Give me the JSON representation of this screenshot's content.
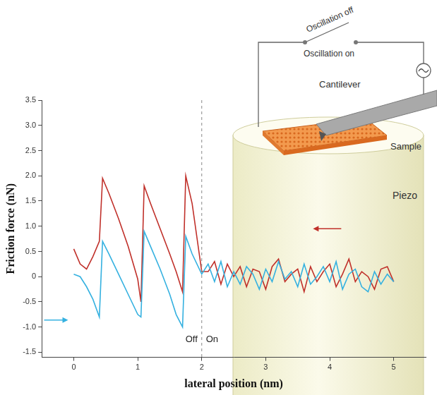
{
  "chart_data": {
    "type": "line",
    "x_label": "lateral position (nm)",
    "y_label": "Friction force (nN)",
    "x": [
      0,
      0.1,
      0.2,
      0.3,
      0.4,
      0.45,
      0.55,
      0.7,
      0.85,
      1.0,
      1.05,
      1.1,
      1.2,
      1.35,
      1.5,
      1.6,
      1.7,
      1.75,
      1.85,
      2.0,
      2.1,
      2.2,
      2.3,
      2.4,
      2.5,
      2.6,
      2.7,
      2.8,
      2.9,
      3.0,
      3.1,
      3.2,
      3.3,
      3.4,
      3.5,
      3.6,
      3.7,
      3.8,
      3.9,
      4.0,
      4.1,
      4.2,
      4.3,
      4.4,
      4.5,
      4.6,
      4.7,
      4.8,
      4.9,
      5.0
    ],
    "series": [
      {
        "color": "#35b1e0",
        "values": [
          0.05,
          0,
          -0.2,
          -0.45,
          -0.8,
          0.7,
          0.45,
          0.05,
          -0.35,
          -0.75,
          -0.8,
          0.9,
          0.6,
          0.15,
          -0.35,
          -0.75,
          -1.0,
          0.8,
          0.45,
          0.05,
          0.25,
          -0.1,
          0.3,
          -0.2,
          0.1,
          -0.15,
          0.2,
          0.05,
          -0.25,
          0.15,
          -0.1,
          0.3,
          -0.05,
          0.1,
          -0.2,
          0.25,
          -0.15,
          0.0,
          0.2,
          -0.1,
          0.3,
          -0.25,
          0.05,
          0.15,
          -0.2,
          -0.3,
          0.1,
          -0.15,
          0.05,
          -0.1
        ]
      },
      {
        "color": "#c0302a",
        "values": [
          0.55,
          0.25,
          0.15,
          0.4,
          0.7,
          1.95,
          1.65,
          1.15,
          0.6,
          -0.05,
          -0.5,
          1.8,
          1.45,
          0.95,
          0.45,
          0.1,
          -0.3,
          2.0,
          1.45,
          0.1,
          0.1,
          0.3,
          -0.15,
          0.25,
          0.0,
          0.2,
          -0.2,
          0.15,
          0.1,
          -0.25,
          0.2,
          0.35,
          -0.1,
          0.05,
          0.15,
          -0.3,
          0.2,
          -0.1,
          0.1,
          0.25,
          -0.2,
          0.05,
          0.35,
          -0.1,
          0.1,
          0.0,
          -0.25,
          0.15,
          0.2,
          -0.1
        ]
      }
    ],
    "xlim": [
      -0.5,
      5.5
    ],
    "xticks": [
      0,
      1,
      2,
      3,
      4,
      5
    ],
    "ylim": [
      -1.6,
      3.5
    ],
    "yticks": [
      {
        "value": -1.5,
        "label": "-1.5"
      },
      {
        "value": -1,
        "label": "-1.0"
      },
      {
        "value": -0.5,
        "label": "-0.5"
      },
      0,
      0.5,
      {
        "value": 1,
        "label": "1.0"
      },
      1.5,
      {
        "value": 2,
        "label": "2.0"
      },
      2.5,
      {
        "value": 3,
        "label": "3.0"
      },
      3.5
    ],
    "grid": false,
    "boundary": {
      "x": 2,
      "labels": [
        "Off",
        "On"
      ]
    },
    "inset": {
      "oscillation_off": "Oscillation off",
      "oscillation_on": "Oscillation on",
      "cantilever": "Cantilever",
      "sample": "Sample",
      "piezo": "Piezo"
    }
  }
}
